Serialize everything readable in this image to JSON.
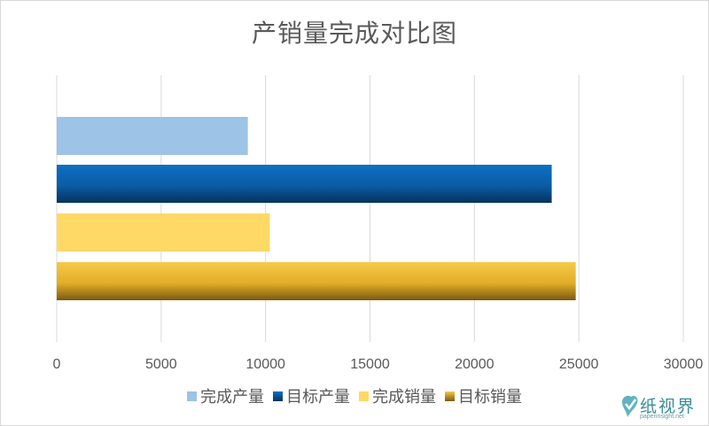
{
  "chart_data": {
    "type": "bar",
    "orientation": "horizontal",
    "title": "产销量完成对比图",
    "series": [
      {
        "name": "完成产量",
        "value": 9150,
        "color": "#9dc3e6"
      },
      {
        "name": "目标产量",
        "value": 23700,
        "color": "#0b64b0"
      },
      {
        "name": "完成销量",
        "value": 10200,
        "color": "#ffd966"
      },
      {
        "name": "目标销量",
        "value": 24850,
        "color": "#e8b42a"
      }
    ],
    "xlim": [
      0,
      30000
    ],
    "ticks": [
      "0",
      "5000",
      "10000",
      "15000",
      "20000",
      "25000",
      "30000"
    ],
    "grid": true,
    "legend_position": "bottom"
  },
  "watermark": {
    "text": "纸视界",
    "sub": "paperinsight.net"
  }
}
